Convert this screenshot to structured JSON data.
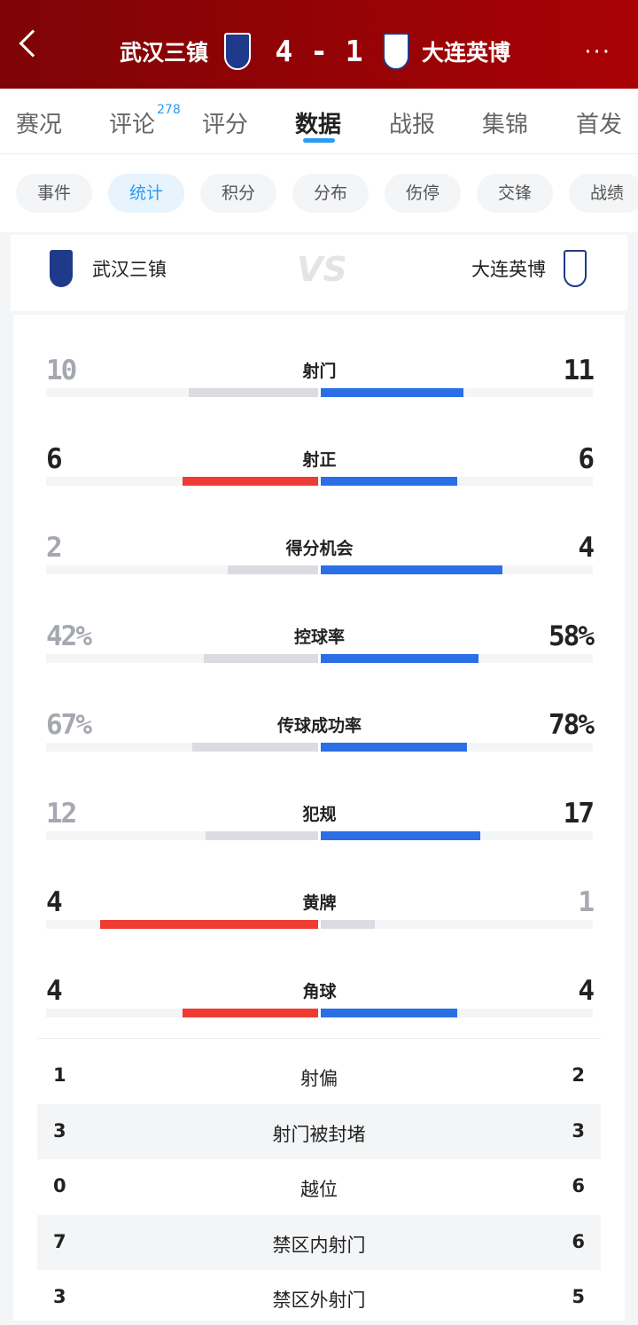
{
  "header": {
    "home": "武汉三镇",
    "away": "大连英博",
    "score": "4 - 1",
    "more": "···"
  },
  "colors": {
    "home": "#ee3c32",
    "away": "#2a6fe6",
    "loser": "#dadce1",
    "header": "#9a0204",
    "accent": "#2a9cf2"
  },
  "tabs": [
    {
      "label": "赛况"
    },
    {
      "label": "评论",
      "badge": "278"
    },
    {
      "label": "评分"
    },
    {
      "label": "数据",
      "active": true
    },
    {
      "label": "战报"
    },
    {
      "label": "集锦"
    },
    {
      "label": "首发"
    }
  ],
  "chips": [
    {
      "label": "事件"
    },
    {
      "label": "统计",
      "active": true
    },
    {
      "label": "积分"
    },
    {
      "label": "分布"
    },
    {
      "label": "伤停"
    },
    {
      "label": "交锋"
    },
    {
      "label": "战绩"
    }
  ],
  "vs": {
    "home": "武汉三镇",
    "away": "大连英博",
    "vs_text": "VS"
  },
  "bar_stats": [
    {
      "label": "射门",
      "home": "10",
      "away": "11",
      "hv": 10,
      "av": 11
    },
    {
      "label": "射正",
      "home": "6",
      "away": "6",
      "hv": 6,
      "av": 6
    },
    {
      "label": "得分机会",
      "home": "2",
      "away": "4",
      "hv": 2,
      "av": 4
    },
    {
      "label": "控球率",
      "home": "42%",
      "away": "58%",
      "hv": 42,
      "av": 58
    },
    {
      "label": "传球成功率",
      "home": "67%",
      "away": "78%",
      "hv": 67,
      "av": 78
    },
    {
      "label": "犯规",
      "home": "12",
      "away": "17",
      "hv": 12,
      "av": 17
    },
    {
      "label": "黄牌",
      "home": "4",
      "away": "1",
      "hv": 4,
      "av": 1
    },
    {
      "label": "角球",
      "home": "4",
      "away": "4",
      "hv": 4,
      "av": 4
    }
  ],
  "list_stats": [
    {
      "label": "射偏",
      "home": "1",
      "away": "2"
    },
    {
      "label": "射门被封堵",
      "home": "3",
      "away": "3"
    },
    {
      "label": "越位",
      "home": "0",
      "away": "6"
    },
    {
      "label": "禁区内射门",
      "home": "7",
      "away": "6"
    },
    {
      "label": "禁区外射门",
      "home": "3",
      "away": "5"
    }
  ]
}
